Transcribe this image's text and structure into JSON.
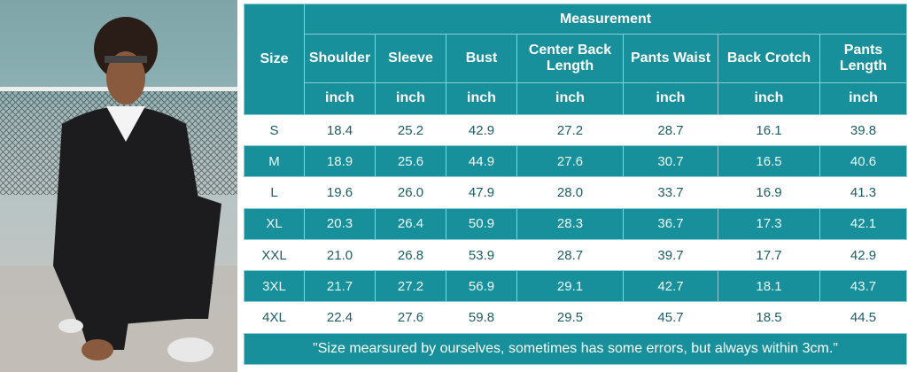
{
  "table": {
    "size_header": "Size",
    "group_header": "Measurement",
    "columns": [
      "Shoulder",
      "Sleeve",
      "Bust",
      "Center Back Length",
      "Pants Waist",
      "Back Crotch",
      "Pants Length"
    ],
    "unit": "inch",
    "rows": [
      {
        "size": "S",
        "values": [
          "18.4",
          "25.2",
          "42.9",
          "27.2",
          "28.7",
          "16.1",
          "39.8"
        ]
      },
      {
        "size": "M",
        "values": [
          "18.9",
          "25.6",
          "44.9",
          "27.6",
          "30.7",
          "16.5",
          "40.6"
        ]
      },
      {
        "size": "L",
        "values": [
          "19.6",
          "26.0",
          "47.9",
          "28.0",
          "33.7",
          "16.9",
          "41.3"
        ]
      },
      {
        "size": "XL",
        "values": [
          "20.3",
          "26.4",
          "50.9",
          "28.3",
          "36.7",
          "17.3",
          "42.1"
        ]
      },
      {
        "size": "XXL",
        "values": [
          "21.0",
          "26.8",
          "53.9",
          "28.7",
          "39.7",
          "17.7",
          "42.9"
        ]
      },
      {
        "size": "3XL",
        "values": [
          "21.7",
          "27.2",
          "56.9",
          "29.1",
          "42.7",
          "18.1",
          "43.7"
        ]
      },
      {
        "size": "4XL",
        "values": [
          "22.4",
          "27.6",
          "59.8",
          "29.5",
          "45.7",
          "18.5",
          "44.5"
        ]
      }
    ],
    "note": "\"Size mearsured by ourselves, sometimes has some errors, but always within 3cm.\""
  },
  "colors": {
    "accent": "#17909b",
    "text_dark": "#1d5c66"
  }
}
